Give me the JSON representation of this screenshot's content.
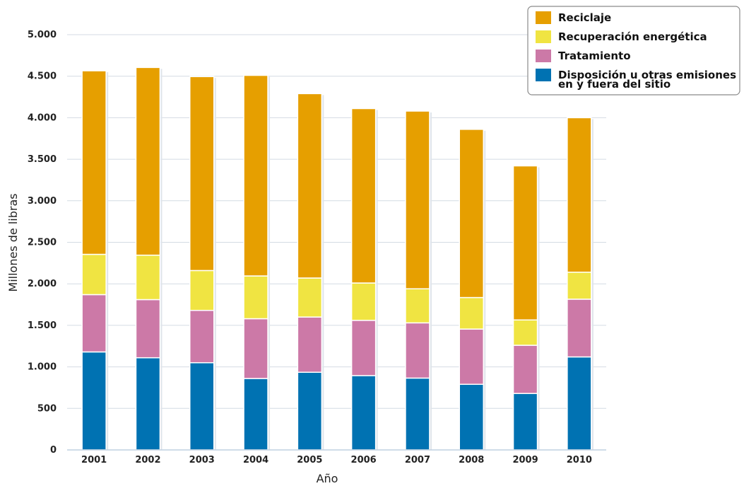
{
  "chart_data": {
    "type": "bar",
    "stacked": true,
    "title": "",
    "xlabel": "Año",
    "ylabel": "Millones de libras",
    "ylim": [
      0,
      5000
    ],
    "yticks": [
      0,
      500,
      1000,
      1500,
      2000,
      2500,
      3000,
      3500,
      4000,
      4500,
      5000
    ],
    "ytick_labels": [
      "0",
      "500",
      "1.000",
      "1.500",
      "2.000",
      "2.500",
      "3.000",
      "3.500",
      "4.000",
      "4.500",
      "5.000"
    ],
    "grid": true,
    "legend_position": "top-right",
    "categories": [
      "2001",
      "2002",
      "2003",
      "2004",
      "2005",
      "2006",
      "2007",
      "2008",
      "2009",
      "2010"
    ],
    "series": [
      {
        "name": "Disposición u otras emisiones en y fuera del sitio",
        "color": "#0072b2",
        "values": [
          1180,
          1110,
          1050,
          860,
          935,
          895,
          865,
          790,
          680,
          1120
        ]
      },
      {
        "name": "Tratamiento",
        "color": "#cc79a7",
        "values": [
          690,
          700,
          630,
          720,
          665,
          665,
          665,
          665,
          580,
          695
        ]
      },
      {
        "name": "Recuperación energética",
        "color": "#f0e442",
        "values": [
          485,
          535,
          480,
          515,
          470,
          450,
          410,
          380,
          305,
          325
        ]
      },
      {
        "name": "Reciclaje",
        "color": "#e69f00",
        "values": [
          2210,
          2260,
          2335,
          2415,
          2220,
          2100,
          2140,
          2025,
          1855,
          1860
        ]
      }
    ],
    "legend": [
      {
        "lines": [
          "Reciclaje"
        ],
        "color": "#e69f00"
      },
      {
        "lines": [
          "Recuperación energética"
        ],
        "color": "#f0e442"
      },
      {
        "lines": [
          "Tratamiento"
        ],
        "color": "#cc79a7"
      },
      {
        "lines": [
          "Disposición u otras emisiones",
          "en y fuera del sitio"
        ],
        "color": "#0072b2"
      }
    ]
  }
}
